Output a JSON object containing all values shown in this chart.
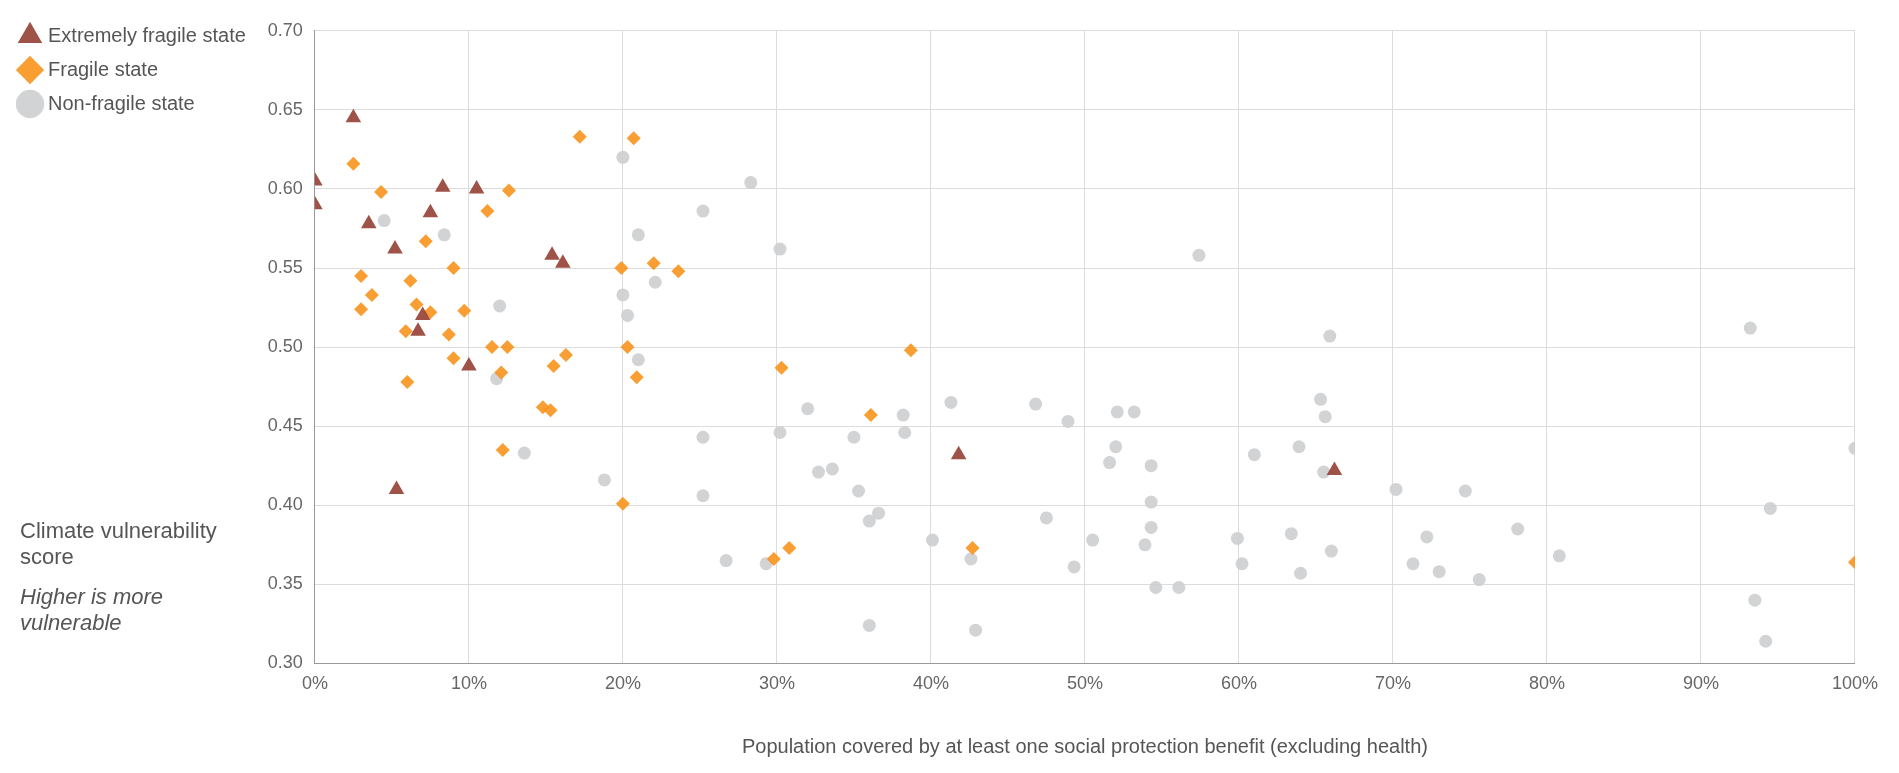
{
  "chart_data": {
    "type": "scatter",
    "xlabel": "Population covered by at least one social protection benefit (excluding health)",
    "ylabel": "Climate vulnerability score",
    "annotations": [
      "Higher is more vulnerable"
    ],
    "legend": "top left",
    "grid": true,
    "xlim": [
      0,
      100
    ],
    "xticks": [
      {
        "value": 0,
        "label": "0%"
      },
      {
        "value": 10,
        "label": "10%"
      },
      {
        "value": 20,
        "label": "20%"
      },
      {
        "value": 30,
        "label": "30%"
      },
      {
        "value": 40,
        "label": "40%"
      },
      {
        "value": 50,
        "label": "50%"
      },
      {
        "value": 60,
        "label": "60%"
      },
      {
        "value": 70,
        "label": "70%"
      },
      {
        "value": 80,
        "label": "80%"
      },
      {
        "value": 90,
        "label": "90%"
      },
      {
        "value": 100,
        "label": "100%"
      }
    ],
    "ylim": [
      0.3,
      0.7
    ],
    "yticks": [
      {
        "value": 0.3,
        "label": "0.30"
      },
      {
        "value": 0.35,
        "label": "0.35"
      },
      {
        "value": 0.4,
        "label": "0.40"
      },
      {
        "value": 0.45,
        "label": "0.45"
      },
      {
        "value": 0.5,
        "label": "0.50"
      },
      {
        "value": 0.55,
        "label": "0.55"
      },
      {
        "value": 0.6,
        "label": "0.60"
      },
      {
        "value": 0.65,
        "label": "0.65"
      },
      {
        "value": 0.7,
        "label": "0.70"
      }
    ],
    "series": [
      {
        "name": "Extremely fragile state",
        "color": "#953f33",
        "marker": "triangle",
        "x": [
          0,
          0,
          2.5,
          3.5,
          5.2,
          5.3,
          6.7,
          7,
          7.5,
          8.3,
          10,
          10.5,
          15.4,
          16.1,
          41.8,
          66.2
        ],
        "values": [
          0.605,
          0.59,
          0.645,
          0.578,
          0.562,
          0.41,
          0.51,
          0.52,
          0.585,
          0.601,
          0.488,
          0.6,
          0.558,
          0.553,
          0.432,
          0.422
        ]
      },
      {
        "name": "Fragile state",
        "color": "#f7941d",
        "marker": "diamond",
        "x": [
          2.5,
          3,
          3,
          3.7,
          4.3,
          6,
          6.2,
          5.9,
          6.6,
          7.2,
          7.5,
          8.7,
          9,
          9,
          9.7,
          11.2,
          11.5,
          12.1,
          12.2,
          12.5,
          12.6,
          14.8,
          15.3,
          15.5,
          16.3,
          17.2,
          19.9,
          20,
          20.3,
          20.7,
          20.9,
          22,
          23.6,
          29.8,
          30.3,
          30.8,
          36.1,
          38.7,
          42.7,
          100
        ],
        "values": [
          0.616,
          0.545,
          0.524,
          0.533,
          0.598,
          0.478,
          0.542,
          0.51,
          0.527,
          0.567,
          0.522,
          0.508,
          0.55,
          0.493,
          0.523,
          0.586,
          0.5,
          0.484,
          0.435,
          0.5,
          0.599,
          0.462,
          0.46,
          0.488,
          0.495,
          0.633,
          0.55,
          0.401,
          0.5,
          0.632,
          0.481,
          0.553,
          0.548,
          0.366,
          0.487,
          0.373,
          0.457,
          0.498,
          0.373,
          0.364
        ]
      },
      {
        "name": "Non-fragile state",
        "color": "#cdcecf",
        "marker": "circle",
        "x": [
          4.5,
          8.4,
          11.8,
          12,
          13.6,
          18.8,
          20,
          20,
          20.3,
          21,
          21,
          22.1,
          25.2,
          25.2,
          25.2,
          26.7,
          28.3,
          29.3,
          30.2,
          30.2,
          32,
          32.7,
          33.6,
          35,
          35.3,
          36,
          36,
          36.6,
          38.2,
          38.3,
          40.1,
          41.3,
          42.6,
          42.9,
          46.8,
          47.5,
          48.9,
          49.3,
          50.5,
          51.6,
          52,
          52.1,
          53.2,
          53.9,
          54.3,
          54.3,
          54.3,
          54.6,
          56.1,
          57.4,
          59.9,
          60.2,
          61,
          63.4,
          63.9,
          64,
          65.3,
          65.5,
          65.6,
          65.9,
          66,
          70.2,
          71.3,
          72.2,
          73,
          74.7,
          75.6,
          78.1,
          80.8,
          93.2,
          93.5,
          94.2,
          94.5,
          100
        ],
        "values": [
          0.58,
          0.571,
          0.48,
          0.526,
          0.433,
          0.416,
          0.62,
          0.533,
          0.52,
          0.571,
          0.492,
          0.541,
          0.586,
          0.443,
          0.406,
          0.365,
          0.604,
          0.363,
          0.562,
          0.446,
          0.461,
          0.421,
          0.423,
          0.443,
          0.409,
          0.39,
          0.324,
          0.395,
          0.457,
          0.446,
          0.378,
          0.465,
          0.366,
          0.321,
          0.464,
          0.392,
          0.453,
          0.361,
          0.378,
          0.427,
          0.437,
          0.459,
          0.459,
          0.375,
          0.425,
          0.402,
          0.386,
          0.348,
          0.348,
          0.558,
          0.379,
          0.363,
          0.432,
          0.382,
          0.437,
          0.357,
          0.467,
          0.421,
          0.456,
          0.507,
          0.371,
          0.41,
          0.363,
          0.38,
          0.358,
          0.409,
          0.353,
          0.385,
          0.368,
          0.512,
          0.34,
          0.314,
          0.398,
          0.436
        ]
      }
    ]
  }
}
